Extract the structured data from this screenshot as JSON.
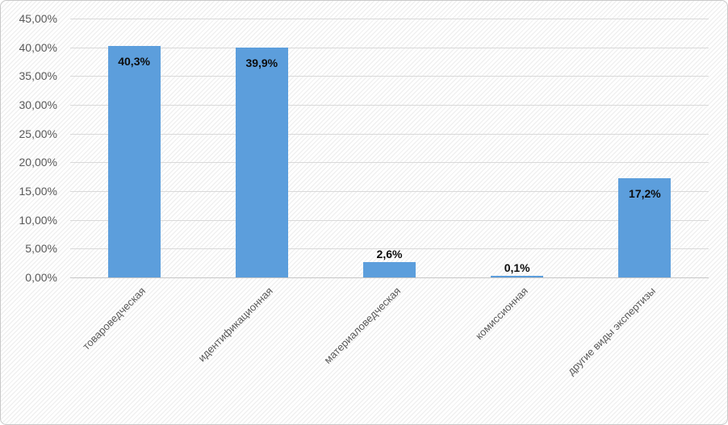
{
  "chart_data": {
    "type": "bar",
    "title": "",
    "xlabel": "",
    "ylabel": "",
    "categories": [
      "товароведческая",
      "идентификационная",
      "материаловедческая",
      "комиссионная",
      "другие виды экспертизы"
    ],
    "values": [
      40.3,
      39.9,
      2.6,
      0.1,
      17.2
    ],
    "data_labels": [
      "40,3%",
      "39,9%",
      "2,6%",
      "0,1%",
      "17,2%"
    ],
    "data_label_placement": [
      "inside",
      "inside",
      "above",
      "above",
      "inside"
    ],
    "ylim": [
      0,
      45
    ],
    "ytick_step": 5,
    "ytick_labels": [
      "0,00%",
      "5,00%",
      "10,00%",
      "15,00%",
      "20,00%",
      "25,00%",
      "30,00%",
      "35,00%",
      "40,00%",
      "45,00%"
    ],
    "grid": true,
    "legend": false,
    "bar_color": "#5c9edc",
    "gridline_color": "#d9d9d9",
    "axis_label_color": "#595959",
    "data_label_color": "#0d0d0d",
    "x_label_rotation_deg": -45
  }
}
